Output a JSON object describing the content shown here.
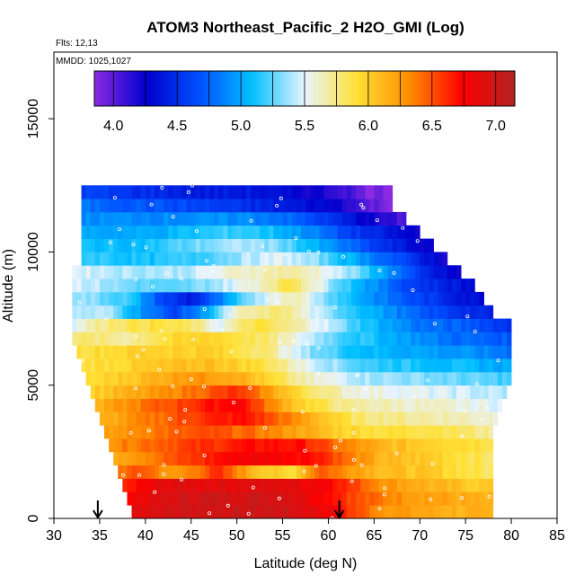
{
  "chart_data": {
    "type": "heatmap",
    "title": "ATOM3 Northeast_Pacific_2 H2O_GMI (Log)",
    "flights_label": "Flts: 12,13",
    "dates_label": "MMDD: 1025,1027",
    "xlabel": "Latitude (deg N)",
    "ylabel": "Altitude (m)",
    "xlim": [
      30,
      85
    ],
    "ylim": [
      0,
      17500
    ],
    "x_ticks": [
      "30",
      "35",
      "40",
      "45",
      "50",
      "55",
      "60",
      "65",
      "70",
      "75",
      "80",
      "85"
    ],
    "y_ticks": [
      "0",
      "5000",
      "10000",
      "15000"
    ],
    "colorbar": {
      "range": [
        3.85,
        7.15
      ],
      "ticks": [
        "4.0",
        "4.5",
        "5.0",
        "5.5",
        "6.0",
        "6.5",
        "7.0"
      ],
      "tick_values": [
        4.0,
        4.5,
        5.0,
        5.5,
        6.0,
        6.5,
        7.0
      ],
      "colors": [
        "#8a2be2",
        "#0000cd",
        "#0050ff",
        "#00bfff",
        "#e8f4ff",
        "#ffe135",
        "#ff8c00",
        "#ff0000",
        "#b22222"
      ]
    },
    "altitude_bins": [
      {
        "z0": 0,
        "z1": 500,
        "lat0": 38.5,
        "lat1": 78.0,
        "values": [
          [
            38.5,
            6.9
          ],
          [
            45,
            7.0
          ],
          [
            55,
            7.0
          ],
          [
            61,
            6.8
          ],
          [
            62,
            6.6
          ],
          [
            66,
            6.3
          ],
          [
            70,
            6.2
          ],
          [
            78,
            6.1
          ]
        ]
      },
      {
        "z0": 500,
        "z1": 1000,
        "lat0": 38.0,
        "lat1": 78.0,
        "values": [
          [
            38,
            6.8
          ],
          [
            45,
            7.0
          ],
          [
            55,
            7.0
          ],
          [
            61,
            6.7
          ],
          [
            63,
            6.5
          ],
          [
            68,
            6.3
          ],
          [
            78,
            6.1
          ]
        ]
      },
      {
        "z0": 1000,
        "z1": 1500,
        "lat0": 37.5,
        "lat1": 78.0,
        "values": [
          [
            37.5,
            6.6
          ],
          [
            42,
            6.9
          ],
          [
            50,
            6.9
          ],
          [
            55,
            6.9
          ],
          [
            60,
            6.8
          ],
          [
            62,
            6.6
          ],
          [
            66,
            6.3
          ],
          [
            72,
            6.1
          ],
          [
            78,
            6.0
          ]
        ]
      },
      {
        "z0": 1500,
        "z1": 2000,
        "lat0": 37.0,
        "lat1": 78.0,
        "values": [
          [
            37,
            6.4
          ],
          [
            40,
            6.5
          ],
          [
            43,
            6.2
          ],
          [
            48,
            6.6
          ],
          [
            52,
            6.1
          ],
          [
            56,
            5.9
          ],
          [
            59,
            6.5
          ],
          [
            62,
            6.3
          ],
          [
            66,
            6.1
          ],
          [
            72,
            6.0
          ],
          [
            78,
            5.8
          ]
        ]
      },
      {
        "z0": 2000,
        "z1": 2500,
        "lat0": 36.5,
        "lat1": 78.0,
        "values": [
          [
            36.5,
            6.2
          ],
          [
            41,
            6.4
          ],
          [
            46,
            6.6
          ],
          [
            50,
            6.8
          ],
          [
            54,
            6.8
          ],
          [
            59,
            6.7
          ],
          [
            62,
            6.4
          ],
          [
            66,
            6.1
          ],
          [
            72,
            6.0
          ],
          [
            78,
            5.8
          ]
        ]
      },
      {
        "z0": 2500,
        "z1": 3000,
        "lat0": 36.0,
        "lat1": 78.0,
        "values": [
          [
            36,
            6.3
          ],
          [
            42,
            6.5
          ],
          [
            47,
            6.6
          ],
          [
            52,
            6.7
          ],
          [
            57,
            6.7
          ],
          [
            61,
            6.4
          ],
          [
            66,
            6.1
          ],
          [
            72,
            6.0
          ],
          [
            78,
            5.9
          ]
        ]
      },
      {
        "z0": 3000,
        "z1": 3500,
        "lat0": 35.5,
        "lat1": 78.0,
        "values": [
          [
            35.5,
            6.2
          ],
          [
            41,
            6.4
          ],
          [
            47,
            6.5
          ],
          [
            52,
            6.4
          ],
          [
            57,
            6.2
          ],
          [
            61,
            6.0
          ],
          [
            66,
            5.9
          ],
          [
            72,
            5.9
          ],
          [
            78,
            5.7
          ]
        ]
      },
      {
        "z0": 3500,
        "z1": 4000,
        "lat0": 35.0,
        "lat1": 78.5,
        "values": [
          [
            35,
            6.1
          ],
          [
            41,
            6.4
          ],
          [
            46,
            6.6
          ],
          [
            51,
            6.7
          ],
          [
            55,
            6.4
          ],
          [
            59,
            6.1
          ],
          [
            63,
            5.8
          ],
          [
            70,
            5.7
          ],
          [
            78.5,
            5.6
          ]
        ]
      },
      {
        "z0": 4000,
        "z1": 4500,
        "lat0": 34.5,
        "lat1": 79.0,
        "values": [
          [
            34.5,
            6.1
          ],
          [
            40,
            6.4
          ],
          [
            45,
            6.6
          ],
          [
            50,
            6.8
          ],
          [
            54,
            6.3
          ],
          [
            57,
            6.0
          ],
          [
            62,
            5.7
          ],
          [
            70,
            5.6
          ],
          [
            79,
            5.5
          ]
        ]
      },
      {
        "z0": 4500,
        "z1": 5000,
        "lat0": 34.0,
        "lat1": 79.5,
        "values": [
          [
            34,
            6.0
          ],
          [
            40,
            6.2
          ],
          [
            45,
            6.4
          ],
          [
            50,
            6.6
          ],
          [
            54,
            6.2
          ],
          [
            57,
            5.9
          ],
          [
            62,
            5.6
          ],
          [
            70,
            5.5
          ],
          [
            79.5,
            5.4
          ]
        ]
      },
      {
        "z0": 5000,
        "z1": 5500,
        "lat0": 33.5,
        "lat1": 80.0,
        "values": [
          [
            33.5,
            5.9
          ],
          [
            40,
            6.1
          ],
          [
            45,
            6.3
          ],
          [
            50,
            6.2
          ],
          [
            54,
            5.9
          ],
          [
            58,
            5.6
          ],
          [
            64,
            5.4
          ],
          [
            72,
            5.3
          ],
          [
            80,
            5.2
          ]
        ]
      },
      {
        "z0": 5500,
        "z1": 6000,
        "lat0": 33.0,
        "lat1": 80.0,
        "values": [
          [
            33,
            5.9
          ],
          [
            40,
            6.0
          ],
          [
            47,
            6.1
          ],
          [
            53,
            5.9
          ],
          [
            58,
            5.5
          ],
          [
            64,
            5.2
          ],
          [
            72,
            5.1
          ],
          [
            80,
            5.0
          ]
        ]
      },
      {
        "z0": 6000,
        "z1": 6500,
        "lat0": 32.5,
        "lat1": 80.0,
        "values": [
          [
            32.5,
            5.9
          ],
          [
            40,
            6.0
          ],
          [
            47,
            6.0
          ],
          [
            53,
            5.8
          ],
          [
            57,
            5.4
          ],
          [
            63,
            5.1
          ],
          [
            70,
            5.0
          ],
          [
            76,
            4.9
          ],
          [
            80,
            4.8
          ]
        ]
      },
      {
        "z0": 6500,
        "z1": 7000,
        "lat0": 32.0,
        "lat1": 80.0,
        "values": [
          [
            32,
            5.8
          ],
          [
            38,
            5.7
          ],
          [
            42,
            5.9
          ],
          [
            47,
            6.0
          ],
          [
            53,
            5.8
          ],
          [
            57,
            5.5
          ],
          [
            62,
            5.2
          ],
          [
            68,
            5.0
          ],
          [
            73,
            4.8
          ],
          [
            80,
            4.7
          ]
        ]
      },
      {
        "z0": 7000,
        "z1": 7500,
        "lat0": 32.0,
        "lat1": 80.0,
        "values": [
          [
            32,
            5.5
          ],
          [
            36,
            5.8
          ],
          [
            41,
            5.9
          ],
          [
            45,
            5.8
          ],
          [
            48,
            5.5
          ],
          [
            52,
            5.9
          ],
          [
            58,
            5.6
          ],
          [
            63,
            5.2
          ],
          [
            70,
            4.8
          ],
          [
            76,
            4.7
          ],
          [
            80,
            4.5
          ]
        ]
      },
      {
        "z0": 7500,
        "z1": 8000,
        "lat0": 32.0,
        "lat1": 78.0,
        "values": [
          [
            32,
            5.4
          ],
          [
            36,
            5.4
          ],
          [
            40,
            4.9
          ],
          [
            43,
            4.6
          ],
          [
            46,
            4.9
          ],
          [
            50,
            5.6
          ],
          [
            55,
            5.8
          ],
          [
            59,
            5.4
          ],
          [
            64,
            5.1
          ],
          [
            70,
            4.7
          ],
          [
            78,
            4.4
          ]
        ]
      },
      {
        "z0": 8000,
        "z1": 8500,
        "lat0": 32.0,
        "lat1": 77.0,
        "values": [
          [
            32,
            5.4
          ],
          [
            38,
            5.2
          ],
          [
            42,
            4.6
          ],
          [
            45,
            4.4
          ],
          [
            48,
            4.8
          ],
          [
            52,
            5.4
          ],
          [
            56,
            5.7
          ],
          [
            60,
            5.3
          ],
          [
            65,
            4.9
          ],
          [
            70,
            4.6
          ],
          [
            77,
            4.3
          ]
        ]
      },
      {
        "z0": 8500,
        "z1": 9000,
        "lat0": 32.0,
        "lat1": 76.0,
        "values": [
          [
            32,
            5.5
          ],
          [
            38,
            5.3
          ],
          [
            43,
            5.2
          ],
          [
            48,
            5.4
          ],
          [
            52,
            5.6
          ],
          [
            56,
            5.9
          ],
          [
            60,
            5.4
          ],
          [
            64,
            5.0
          ],
          [
            69,
            4.6
          ],
          [
            76,
            4.3
          ]
        ]
      },
      {
        "z0": 9000,
        "z1": 9500,
        "lat0": 32.0,
        "lat1": 74.5,
        "values": [
          [
            32,
            5.5
          ],
          [
            38,
            5.4
          ],
          [
            44,
            5.4
          ],
          [
            50,
            5.6
          ],
          [
            55,
            5.7
          ],
          [
            59,
            5.6
          ],
          [
            63,
            5.3
          ],
          [
            67,
            4.9
          ],
          [
            70,
            4.5
          ],
          [
            74.5,
            4.2
          ]
        ]
      },
      {
        "z0": 9500,
        "z1": 10000,
        "lat0": 33.0,
        "lat1": 73.0,
        "values": [
          [
            33,
            5.2
          ],
          [
            40,
            5.1
          ],
          [
            46,
            5.2
          ],
          [
            51,
            5.4
          ],
          [
            55,
            5.5
          ],
          [
            59,
            5.3
          ],
          [
            63,
            5.0
          ],
          [
            67,
            4.7
          ],
          [
            73,
            4.2
          ]
        ]
      },
      {
        "z0": 10000,
        "z1": 10500,
        "lat0": 33.0,
        "lat1": 71.5,
        "values": [
          [
            33,
            5.1
          ],
          [
            40,
            5.1
          ],
          [
            46,
            5.3
          ],
          [
            51,
            5.4
          ],
          [
            55,
            5.3
          ],
          [
            59,
            5.0
          ],
          [
            62,
            4.8
          ],
          [
            66,
            4.5
          ],
          [
            71.5,
            4.2
          ]
        ]
      },
      {
        "z0": 10500,
        "z1": 11000,
        "lat0": 33.0,
        "lat1": 70.0,
        "values": [
          [
            33,
            5.0
          ],
          [
            40,
            5.0
          ],
          [
            45,
            5.1
          ],
          [
            50,
            5.2
          ],
          [
            54,
            5.1
          ],
          [
            58,
            4.9
          ],
          [
            62,
            4.6
          ],
          [
            66,
            4.4
          ],
          [
            70,
            4.2
          ]
        ]
      },
      {
        "z0": 11000,
        "z1": 11500,
        "lat0": 33.0,
        "lat1": 68.5,
        "values": [
          [
            33,
            4.9
          ],
          [
            40,
            4.9
          ],
          [
            46,
            4.9
          ],
          [
            51,
            4.9
          ],
          [
            55,
            4.8
          ],
          [
            59,
            4.6
          ],
          [
            62,
            4.4
          ],
          [
            65,
            4.2
          ],
          [
            68.5,
            4.0
          ]
        ]
      },
      {
        "z0": 11500,
        "z1": 12000,
        "lat0": 33.0,
        "lat1": 67.0,
        "values": [
          [
            33,
            4.8
          ],
          [
            40,
            4.7
          ],
          [
            46,
            4.6
          ],
          [
            51,
            4.5
          ],
          [
            55,
            4.4
          ],
          [
            59,
            4.3
          ],
          [
            62,
            4.2
          ],
          [
            64,
            4.0
          ],
          [
            67,
            3.9
          ]
        ]
      },
      {
        "z0": 12000,
        "z1": 12500,
        "lat0": 33.0,
        "lat1": 67.0,
        "values": [
          [
            33,
            4.6
          ],
          [
            40,
            4.5
          ],
          [
            46,
            4.4
          ],
          [
            51,
            4.4
          ],
          [
            55,
            4.3
          ],
          [
            59,
            4.2
          ],
          [
            62,
            4.1
          ],
          [
            64,
            3.9
          ],
          [
            67,
            3.9
          ]
        ]
      }
    ],
    "markers": [
      {
        "lat": 34.8,
        "label": "flight-start-arrow"
      },
      {
        "lat": 61.2,
        "label": "flight-end-arrow"
      }
    ]
  }
}
